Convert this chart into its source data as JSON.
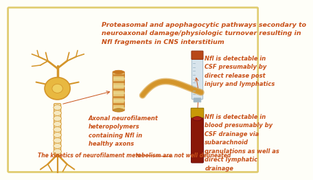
{
  "bg_color": "#fefef8",
  "border_color": "#e0cc70",
  "text_color": "#c85018",
  "neuron_color": "#d4952a",
  "neuron_light": "#f5e8c0",
  "neuron_soma_outer": "#e8b840",
  "neuron_soma_inner": "#f0d060",
  "filament_color": "#c87820",
  "filament_light": "#e8c878",
  "filament_stripe": "#d4a040",
  "csf_tube_body": "#d8e4ec",
  "csf_tube_cap": "#b84818",
  "csf_tube_line": "#a0b8c8",
  "blood_tube_body": "#8a1808",
  "blood_tube_cap": "#c89808",
  "axon_wave_color": "#d4952a",
  "title_text": "Proteasomal and apophagocytic pathways secondary to\nneuroaxonal damage/physiologic turnover resulting in\nNfl fragments in CNS interstitium",
  "csf_label": "Nfl is detectable in\nCSF presumably by\ndirect release post\ninjury and lymphatics",
  "blood_label": "Nfl is detectable in\nblood presumably by\nCSF drainage via\nsubarachnoid\ngranulations as well as\ndirect lymphatic\ndrainage",
  "axonal_label": "Axonal neurofilament\nheteropolymers\ncontaining Nfl in\nhealthy axons",
  "kinetics_label": "The kinetics of neurofilament metabolism are not well delineated",
  "font_size_title": 6.8,
  "font_size_labels": 6.0,
  "font_size_kinetics": 5.5
}
